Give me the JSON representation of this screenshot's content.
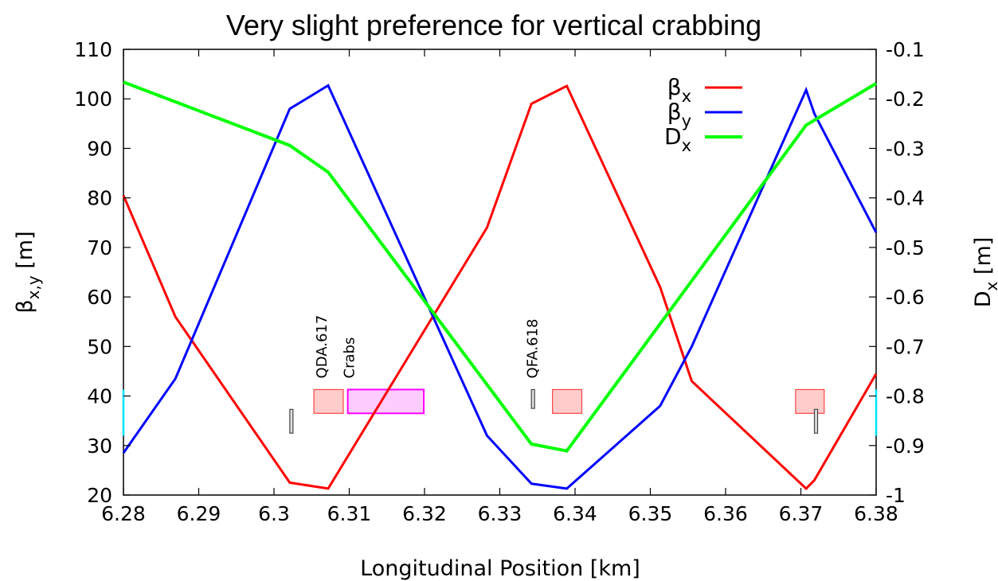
{
  "chart_data": {
    "type": "line",
    "title": "Very slight preference for vertical crabbing",
    "xlabel": "Longitudinal Position [km]",
    "ylabel": {
      "main": "β",
      "sub": "x,y",
      "unit": " [m]"
    },
    "y2label": {
      "main": "D",
      "sub": "x",
      "unit": " [m]"
    },
    "xlim": [
      6.28,
      6.38
    ],
    "ylim": [
      20,
      110
    ],
    "y2lim": [
      -1,
      -0.1
    ],
    "x_ticks": [
      "6.28",
      "6.29",
      "6.3",
      "6.31",
      "6.32",
      "6.33",
      "6.34",
      "6.35",
      "6.36",
      "6.37",
      "6.38"
    ],
    "y_ticks": [
      "20",
      "30",
      "40",
      "50",
      "60",
      "70",
      "80",
      "90",
      "100",
      "110"
    ],
    "y2_ticks": [
      "-1",
      "-0.9",
      "-0.8",
      "-0.7",
      "-0.6",
      "-0.5",
      "-0.4",
      "-0.3",
      "-0.2",
      "-0.1"
    ],
    "grid": false,
    "legend_position": "top-right",
    "series": [
      {
        "name": "β",
        "name_sub": "x",
        "axis": "left",
        "color": "#ff0000",
        "x": [
          6.28,
          6.2869,
          6.3021,
          6.3072,
          6.3283,
          6.3342,
          6.3389,
          6.3513,
          6.3555,
          6.3707,
          6.3718,
          6.38
        ],
        "y": [
          80.5,
          56,
          22.5,
          21.3,
          74,
          99,
          102.6,
          62,
          43,
          21.3,
          23,
          44.5
        ]
      },
      {
        "name": "β",
        "name_sub": "y",
        "axis": "left",
        "color": "#0000ff",
        "x": [
          6.28,
          6.2869,
          6.3021,
          6.3072,
          6.3283,
          6.3342,
          6.3389,
          6.3513,
          6.3555,
          6.3707,
          6.3718,
          6.38
        ],
        "y": [
          28.5,
          43.5,
          98,
          102.7,
          32,
          22.3,
          21.3,
          38,
          50,
          101.8,
          97,
          73
        ]
      },
      {
        "name": "D",
        "name_sub": "x",
        "axis": "right",
        "color": "#00ff00",
        "x": [
          6.28,
          6.3021,
          6.3072,
          6.3342,
          6.3389,
          6.3707,
          6.38
        ],
        "y": [
          -0.166,
          -0.294,
          -0.348,
          -0.897,
          -0.911,
          -0.253,
          -0.169
        ]
      }
    ],
    "elements": [
      {
        "type": "quad",
        "x0": 6.3053,
        "x1": 6.3092,
        "y0": 36.5,
        "y1": 41.3,
        "fill": "#ffcccc",
        "stroke": "#ff4444",
        "label": "QDA.617"
      },
      {
        "type": "crab",
        "x0": 6.3098,
        "x1": 6.3199,
        "y0": 36.5,
        "y1": 41.3,
        "fill": "#ffccff",
        "stroke": "#ff00ff",
        "label": "Crabs"
      },
      {
        "type": "quad",
        "x0": 6.337,
        "x1": 6.3409,
        "y0": 36.5,
        "y1": 41.3,
        "fill": "#ffcccc",
        "stroke": "#ff4444",
        "label": "QFA.618"
      },
      {
        "type": "quad",
        "x0": 6.3693,
        "x1": 6.3731,
        "y0": 36.5,
        "y1": 41.3,
        "fill": "#ffcccc",
        "stroke": "#ff4444",
        "label": ""
      },
      {
        "type": "marker",
        "x0": 6.3021,
        "x1": 6.3024,
        "y0": 32.5,
        "y1": 37.3,
        "fill": "#dddddd",
        "stroke": "#444444",
        "label": ""
      },
      {
        "type": "marker",
        "x0": 6.3342,
        "x1": 6.3345,
        "y0": 37.5,
        "y1": 41.3,
        "fill": "#dddddd",
        "stroke": "#444444",
        "label": ""
      },
      {
        "type": "marker",
        "x0": 6.3718,
        "x1": 6.3721,
        "y0": 32.5,
        "y1": 37.3,
        "fill": "#dddddd",
        "stroke": "#444444",
        "label": ""
      },
      {
        "type": "edge",
        "x0": 6.28,
        "x1": 6.28,
        "y0": 32,
        "y1": 41.3,
        "fill": "none",
        "stroke": "#00e5ff",
        "label": ""
      },
      {
        "type": "edge",
        "x0": 6.38,
        "x1": 6.38,
        "y0": 32,
        "y1": 41.3,
        "fill": "none",
        "stroke": "#00e5ff",
        "label": ""
      }
    ]
  }
}
